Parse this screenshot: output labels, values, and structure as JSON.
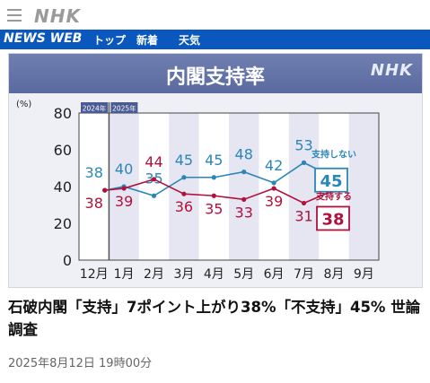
{
  "header": {
    "logo": "NHK"
  },
  "nav": {
    "brand": "NEWS WEB",
    "items": [
      "トップ",
      "新着",
      "天気"
    ]
  },
  "chart_data": {
    "type": "line",
    "title": "内閣支持率",
    "watermark": "NHK",
    "ylabel": "(%)",
    "ylim": [
      0,
      80
    ],
    "yticks": [
      0,
      20,
      40,
      60,
      80
    ],
    "categories": [
      "12月",
      "1月",
      "2月",
      "3月",
      "4月",
      "5月",
      "6月",
      "7月",
      "8月",
      "9月"
    ],
    "year_labels": [
      "2024年",
      "2025年"
    ],
    "series": [
      {
        "name": "支持しない",
        "color": "#2a86b8",
        "values": [
          38,
          40,
          35,
          45,
          45,
          48,
          42,
          53,
          45,
          null
        ],
        "latest": "45"
      },
      {
        "name": "支持する",
        "color": "#b0123c",
        "values": [
          38,
          39,
          44,
          36,
          35,
          33,
          39,
          31,
          38,
          null
        ],
        "latest": "38"
      }
    ]
  },
  "article": {
    "headline": "石破内閣「支持」7ポイント上がり38%「不支持」45% 世論調査",
    "timestamp": "2025年8月12日 19時00分"
  }
}
